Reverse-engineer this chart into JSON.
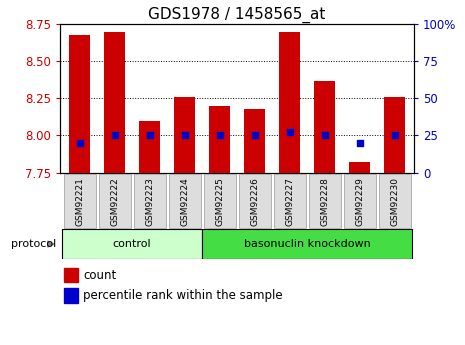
{
  "title": "GDS1978 / 1458565_at",
  "samples": [
    "GSM92221",
    "GSM92222",
    "GSM92223",
    "GSM92224",
    "GSM92225",
    "GSM92226",
    "GSM92227",
    "GSM92228",
    "GSM92229",
    "GSM92230"
  ],
  "counts": [
    8.68,
    8.7,
    8.1,
    8.26,
    8.2,
    8.18,
    8.7,
    8.37,
    7.82,
    8.26
  ],
  "percentiles": [
    20,
    25,
    25,
    25,
    25,
    25,
    27,
    25,
    20,
    25
  ],
  "ylim_left": [
    7.75,
    8.75
  ],
  "ylim_right": [
    0,
    100
  ],
  "yticks_left": [
    7.75,
    8.0,
    8.25,
    8.5,
    8.75
  ],
  "yticks_right": [
    0,
    25,
    50,
    75,
    100
  ],
  "gridlines_at": [
    8.0,
    8.25,
    8.5
  ],
  "bar_color": "#cc0000",
  "dot_color": "#0000cc",
  "bar_width": 0.6,
  "n_control": 4,
  "control_label": "control",
  "knockdown_label": "basonuclin knockdown",
  "control_color": "#ccffcc",
  "knockdown_color": "#44dd44",
  "protocol_label": "protocol",
  "legend_count_label": "count",
  "legend_percentile_label": "percentile rank within the sample",
  "tick_label_color_left": "#cc0000",
  "tick_label_color_right": "#0000cc",
  "title_fontsize": 11,
  "axis_fontsize": 8.5
}
